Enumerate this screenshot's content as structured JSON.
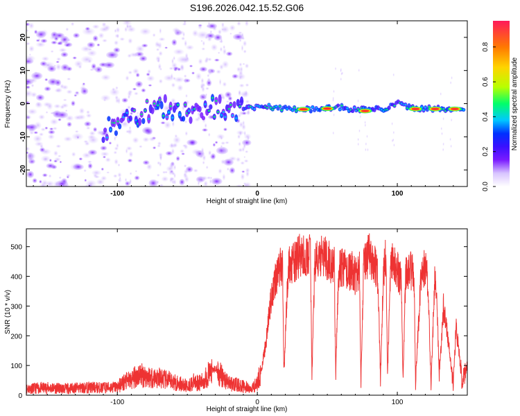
{
  "figure_title": "S196.2026.042.15.52.G06",
  "colors": {
    "line": "#ee3333",
    "axis": "#000000",
    "colormap": [
      "#ffffff",
      "#d8c4ff",
      "#7a1bff",
      "#3b10ff",
      "#0030ff",
      "#00c8ff",
      "#00ff6a",
      "#b8ff00",
      "#ffd400",
      "#ff7a00",
      "#ff1a5a"
    ]
  },
  "chart_data": [
    {
      "type": "heatmap",
      "xlabel": "Height of straight line (km)",
      "ylabel": "Frequency (Hz)",
      "xlim": [
        -165,
        150
      ],
      "ylim": [
        -25,
        25
      ],
      "xticks": [
        -100,
        0,
        100
      ],
      "yticks": [
        -20,
        -10,
        0,
        10,
        20
      ],
      "colorbar": {
        "label": "Normalized spectral amplitude",
        "range": [
          0,
          0.95
        ],
        "ticks": [
          0.0,
          0.2,
          0.4,
          0.6,
          0.8
        ]
      },
      "ridge": {
        "description": "dominant frequency ridge",
        "points": [
          [
            -110,
            -8
          ],
          [
            -100,
            -6
          ],
          [
            -90,
            -4
          ],
          [
            -80,
            -2
          ],
          [
            -70,
            -1
          ],
          [
            -60,
            -2
          ],
          [
            -50,
            -2
          ],
          [
            -40,
            -2
          ],
          [
            -30,
            -1
          ],
          [
            -20,
            -2
          ],
          [
            -10,
            -1
          ],
          [
            0,
            -1
          ],
          [
            10,
            -1
          ],
          [
            20,
            -1.5
          ],
          [
            30,
            -2
          ],
          [
            40,
            -1.5
          ],
          [
            50,
            -1.5
          ],
          [
            60,
            -1
          ],
          [
            70,
            -2
          ],
          [
            80,
            -1.5
          ],
          [
            90,
            -2
          ],
          [
            100,
            0
          ],
          [
            110,
            -1.5
          ],
          [
            120,
            -1.5
          ],
          [
            130,
            -1.5
          ],
          [
            140,
            -1.5
          ],
          [
            148,
            -1.5
          ]
        ]
      },
      "peaks": [
        {
          "x": 33,
          "y": -1.7,
          "amp": 0.95
        },
        {
          "x": 50,
          "y": -1.5,
          "amp": 0.95
        },
        {
          "x": 77,
          "y": -2.2,
          "amp": 0.9
        },
        {
          "x": 113,
          "y": -1.6,
          "amp": 0.95
        },
        {
          "x": 127,
          "y": -1.6,
          "amp": 0.95
        },
        {
          "x": 141,
          "y": -1.6,
          "amp": 0.9
        }
      ]
    },
    {
      "type": "line",
      "xlabel": "Height of straight line (km)",
      "ylabel": "SNR (10 * v/v)",
      "xlim": [
        -165,
        150
      ],
      "ylim": [
        0,
        560
      ],
      "xticks": [
        -100,
        0,
        100
      ],
      "yticks": [
        0,
        100,
        200,
        300,
        400,
        500
      ],
      "series": [
        {
          "name": "SNR",
          "x": [
            -165,
            -150,
            -140,
            -130,
            -120,
            -110,
            -100,
            -95,
            -90,
            -85,
            -80,
            -75,
            -70,
            -65,
            -60,
            -55,
            -50,
            -45,
            -40,
            -35,
            -30,
            -25,
            -20,
            -15,
            -10,
            -5,
            0,
            3,
            6,
            9,
            12,
            15,
            18,
            19,
            22,
            27,
            30,
            35,
            38,
            39,
            41,
            45,
            48,
            52,
            55,
            56,
            58,
            62,
            65,
            68,
            70,
            73,
            74,
            76,
            80,
            84,
            86,
            88,
            90,
            92,
            93,
            95,
            96,
            98,
            100,
            103,
            104,
            106,
            110,
            112,
            113,
            117,
            120,
            122,
            124,
            127,
            128,
            130,
            133,
            138,
            140,
            142,
            144,
            146,
            148,
            150
          ],
          "values": [
            22,
            25,
            22,
            24,
            26,
            25,
            28,
            45,
            50,
            70,
            65,
            60,
            58,
            50,
            45,
            38,
            30,
            45,
            42,
            70,
            90,
            60,
            40,
            35,
            30,
            20,
            40,
            90,
            170,
            300,
            380,
            420,
            440,
            70,
            430,
            450,
            470,
            460,
            480,
            60,
            440,
            460,
            470,
            450,
            430,
            60,
            420,
            430,
            410,
            420,
            400,
            420,
            50,
            450,
            470,
            440,
            400,
            60,
            420,
            470,
            60,
            400,
            480,
            430,
            420,
            380,
            40,
            410,
            420,
            400,
            40,
            410,
            430,
            380,
            30,
            420,
            360,
            60,
            300,
            120,
            40,
            230,
            150,
            45,
            60,
            110
          ]
        }
      ]
    }
  ]
}
